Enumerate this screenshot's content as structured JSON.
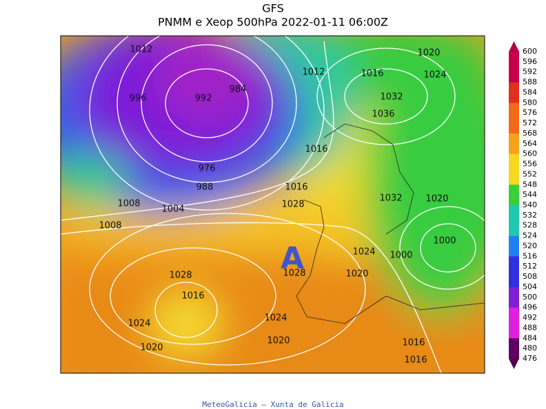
{
  "header": {
    "title": "GFS",
    "subtitle": "PNMM e Xeop 500hPa 2022-01-11 06:00Z"
  },
  "map": {
    "high_label": "A",
    "isobar_labels": [
      "1012",
      "996",
      "992",
      "984",
      "976",
      "988",
      "1008",
      "1004",
      "1008",
      "1012",
      "1016",
      "1020",
      "1024",
      "1032",
      "1036",
      "1016",
      "1016",
      "1028",
      "1032",
      "1020",
      "1000",
      "1024",
      "1000",
      "1028",
      "1028",
      "1020",
      "1016",
      "1024",
      "1024",
      "1020",
      "1020",
      "1016",
      "1016"
    ]
  },
  "colorbar": {
    "labels": [
      600,
      596,
      592,
      588,
      584,
      580,
      576,
      572,
      568,
      564,
      560,
      556,
      552,
      548,
      544,
      540,
      532,
      528,
      524,
      520,
      516,
      512,
      508,
      504,
      500,
      496,
      492,
      488,
      484,
      480,
      476
    ]
  },
  "footer": "MeteoGalicia — Xunta de Galicia"
}
